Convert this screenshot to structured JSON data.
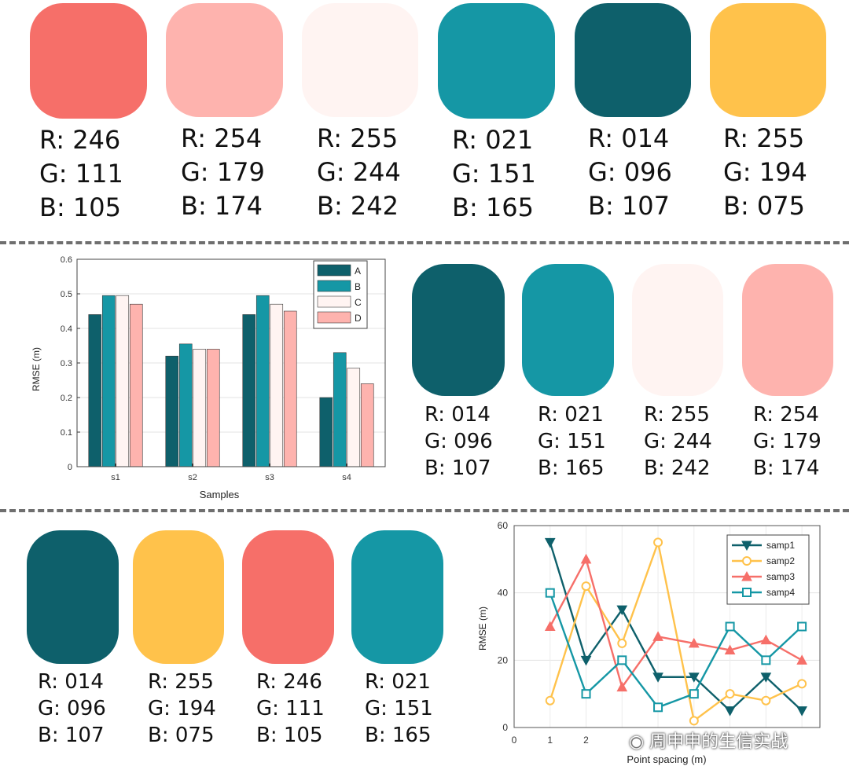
{
  "top_palette": [
    {
      "color": "#F66F69",
      "r": "R: 246",
      "g": "G: 111",
      "b": "B: 105"
    },
    {
      "color": "#FEB3AE",
      "r": "R: 254",
      "g": "G: 179",
      "b": "B: 174"
    },
    {
      "color": "#FFF4F2",
      "r": "R: 255",
      "g": "G: 244",
      "b": "B: 242"
    },
    {
      "color": "#1597A5",
      "r": "R: 021",
      "g": "G: 151",
      "b": "B: 165"
    },
    {
      "color": "#0E606B",
      "r": "R: 014",
      "g": "G: 096",
      "b": "B: 107"
    },
    {
      "color": "#FFC24B",
      "r": "R: 255",
      "g": "G: 194",
      "b": "B: 075"
    }
  ],
  "mid_palette": [
    {
      "color": "#0E606B",
      "r": "R: 014",
      "g": "G: 096",
      "b": "B: 107"
    },
    {
      "color": "#1597A5",
      "r": "R: 021",
      "g": "G: 151",
      "b": "B: 165"
    },
    {
      "color": "#FFF4F2",
      "r": "R: 255",
      "g": "G: 244",
      "b": "B: 242"
    },
    {
      "color": "#FEB3AE",
      "r": "R: 254",
      "g": "G: 179",
      "b": "B: 174"
    }
  ],
  "bottom_palette": [
    {
      "color": "#0E606B",
      "r": "R: 014",
      "g": "G: 096",
      "b": "B: 107"
    },
    {
      "color": "#FFC24B",
      "r": "R: 255",
      "g": "G: 194",
      "b": "B: 075"
    },
    {
      "color": "#F66F69",
      "r": "R: 246",
      "g": "G: 111",
      "b": "B: 105"
    },
    {
      "color": "#1597A5",
      "r": "R: 021",
      "g": "G: 151",
      "b": "B: 165"
    }
  ],
  "watermark": "周申申的生信实战",
  "chart_data": [
    {
      "type": "bar",
      "categories": [
        "s1",
        "s2",
        "s3",
        "s4"
      ],
      "series": [
        {
          "name": "A",
          "color": "#0E606B",
          "values": [
            0.44,
            0.32,
            0.44,
            0.2
          ]
        },
        {
          "name": "B",
          "color": "#1597A5",
          "values": [
            0.495,
            0.355,
            0.495,
            0.33
          ]
        },
        {
          "name": "C",
          "color": "#FFF4F2",
          "values": [
            0.495,
            0.34,
            0.47,
            0.285
          ]
        },
        {
          "name": "D",
          "color": "#FEB3AE",
          "values": [
            0.47,
            0.34,
            0.45,
            0.24
          ]
        }
      ],
      "xlabel": "Samples",
      "ylabel": "RMSE (m)",
      "ylim": [
        0,
        0.6
      ],
      "yticks": [
        "0",
        "0.1",
        "0.2",
        "0.3",
        "0.4",
        "0.5",
        "0.6"
      ],
      "grid": true,
      "legend": "top-right"
    },
    {
      "type": "line",
      "x": [
        1,
        2,
        3,
        4,
        5,
        6,
        7,
        8
      ],
      "series": [
        {
          "name": "samp1",
          "color": "#0E606B",
          "marker": "triangle-down",
          "values": [
            55,
            20,
            35,
            15,
            15,
            5,
            15,
            5
          ]
        },
        {
          "name": "samp2",
          "color": "#FFC24B",
          "marker": "circle",
          "values": [
            8,
            42,
            25,
            55,
            2,
            10,
            8,
            13
          ]
        },
        {
          "name": "samp3",
          "color": "#F66F69",
          "marker": "triangle-up",
          "values": [
            30,
            50,
            12,
            27,
            25,
            23,
            26,
            20
          ]
        },
        {
          "name": "samp4",
          "color": "#1597A5",
          "marker": "square",
          "values": [
            40,
            10,
            20,
            6,
            10,
            30,
            20,
            30
          ]
        }
      ],
      "xlabel": "Point spacing (m)",
      "ylabel": "RMSE (m)",
      "xlim": [
        0,
        8.5
      ],
      "ylim": [
        0,
        60
      ],
      "xticks": [
        "0",
        "1",
        "2"
      ],
      "yticks": [
        "0",
        "20",
        "40",
        "60"
      ],
      "grid": true,
      "legend": "top-right"
    }
  ]
}
